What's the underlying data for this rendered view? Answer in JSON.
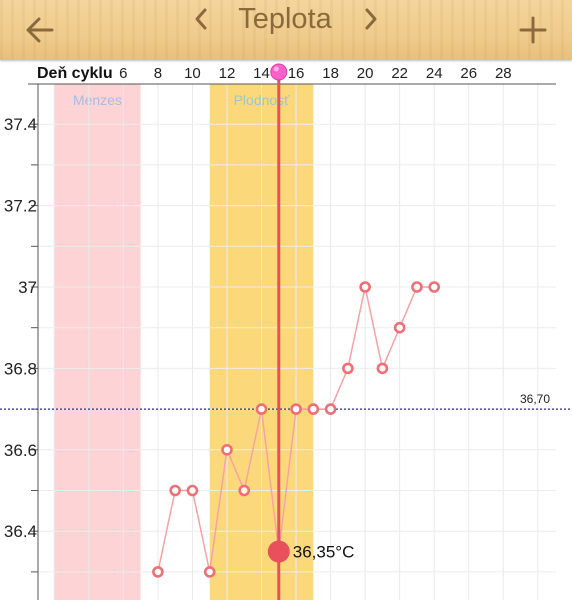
{
  "header": {
    "title": "Teplota",
    "back_icon": "arrow-left-icon",
    "prev_icon": "chevron-left-icon",
    "next_icon": "chevron-right-icon",
    "add_icon": "plus-icon"
  },
  "chart_data": {
    "type": "line",
    "x_axis_label": "Deň cyklu",
    "x_ticks": [
      6,
      8,
      10,
      12,
      14,
      16,
      18,
      20,
      22,
      24,
      26,
      28
    ],
    "y_ticks": [
      37.4,
      37.2,
      37,
      36.8,
      36.6,
      36.4
    ],
    "y_tick_labels": [
      "37.4",
      "37.2",
      "37",
      "36.8",
      "36.6",
      "36.4"
    ],
    "ylim": [
      36.28,
      37.5
    ],
    "xlim": [
      1,
      30
    ],
    "grid": true,
    "bands": [
      {
        "label": "Menzes",
        "start": 2,
        "end": 7,
        "color": "#fdd3d5",
        "label_color": "#a7bde6"
      },
      {
        "label": "Plodnosť",
        "start": 11,
        "end": 17,
        "color": "#fbd97a",
        "label_color": "#9cc7c9"
      }
    ],
    "reference_line": {
      "value": 36.7,
      "label": "36,70",
      "color": "#2a2a9a"
    },
    "series": [
      {
        "color": "#f06f76",
        "line_color": "#f7a2a6",
        "points": [
          [
            8,
            36.3
          ],
          [
            9,
            36.5
          ],
          [
            10,
            36.5
          ],
          [
            11,
            36.3
          ],
          [
            12,
            36.6
          ],
          [
            13,
            36.5
          ],
          [
            14,
            36.7
          ],
          [
            15,
            36.35
          ],
          [
            16,
            36.7
          ],
          [
            17,
            36.7
          ],
          [
            18,
            36.7
          ],
          [
            19,
            36.8
          ],
          [
            20,
            37.0
          ],
          [
            21,
            36.8
          ],
          [
            22,
            36.9
          ],
          [
            23,
            37.0
          ],
          [
            24,
            37.0
          ]
        ]
      }
    ],
    "selected": {
      "day": 15,
      "value": 36.35,
      "label": "36,35°C",
      "color": "#e8505b"
    }
  }
}
